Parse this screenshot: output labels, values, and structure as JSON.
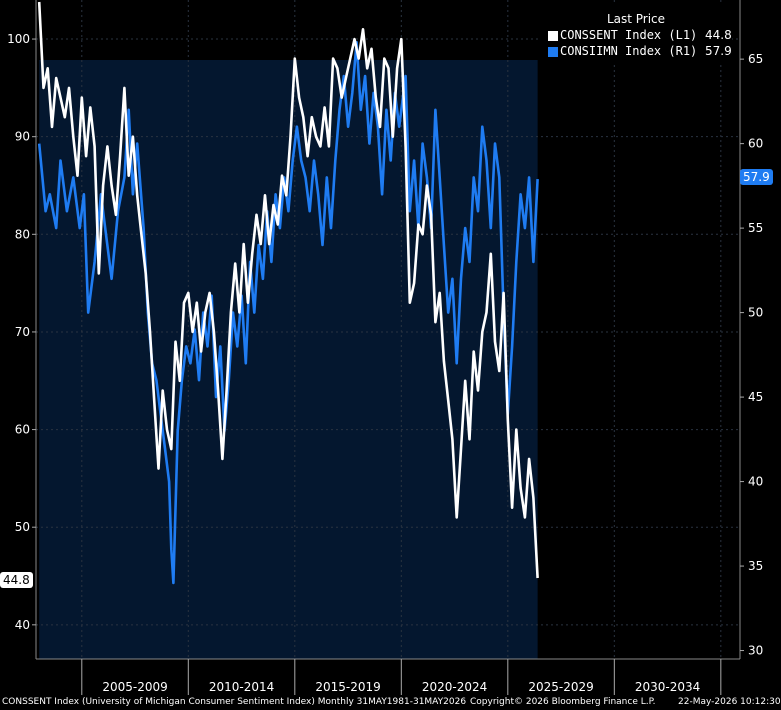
{
  "chart_data": {
    "type": "line",
    "legend": {
      "header": "Last Price",
      "placement": "top-right",
      "entries": [
        {
          "label": "CONSSENT Index  (L1)",
          "value": "44.8",
          "color": "#ffffff"
        },
        {
          "label": "CONSIIMN Index  (R1)",
          "value": "57.9",
          "color": "#1f7cf2"
        }
      ]
    },
    "left_axis": {
      "ylim": [
        36.5,
        104
      ],
      "ticks": [
        "40",
        "50",
        "60",
        "70",
        "80",
        "90",
        "100"
      ]
    },
    "right_axis": {
      "ylim": [
        29.5,
        68.5
      ],
      "ticks": [
        "30",
        "35",
        "40",
        "45",
        "50",
        "55",
        "60",
        "65"
      ]
    },
    "x_axis": {
      "xlim": [
        2002.85,
        2035.9
      ],
      "ticks": [
        "2005-2009",
        "2010-2014",
        "2015-2019",
        "2020-2024",
        "2025-2029",
        "2030-2034"
      ]
    },
    "last_tags": {
      "left": "44.8",
      "right": "57.9"
    },
    "series": [
      {
        "name": "CONSIIMN Index",
        "axis": "right",
        "color": "#1f7cf2",
        "points": [
          [
            2003.0,
            60
          ],
          [
            2003.3,
            56
          ],
          [
            2003.5,
            57
          ],
          [
            2003.8,
            55
          ],
          [
            2004.0,
            59
          ],
          [
            2004.3,
            56
          ],
          [
            2004.6,
            58
          ],
          [
            2004.9,
            55
          ],
          [
            2005.1,
            57
          ],
          [
            2005.3,
            50
          ],
          [
            2005.6,
            53
          ],
          [
            2005.9,
            57
          ],
          [
            2006.1,
            55
          ],
          [
            2006.4,
            52
          ],
          [
            2006.7,
            56
          ],
          [
            2007.0,
            58
          ],
          [
            2007.2,
            62
          ],
          [
            2007.4,
            57
          ],
          [
            2007.6,
            60
          ],
          [
            2007.9,
            55
          ],
          [
            2008.1,
            50
          ],
          [
            2008.3,
            47
          ],
          [
            2008.5,
            46
          ],
          [
            2008.7,
            44
          ],
          [
            2008.9,
            42
          ],
          [
            2009.1,
            40
          ],
          [
            2009.2,
            36
          ],
          [
            2009.3,
            34
          ],
          [
            2009.5,
            43
          ],
          [
            2009.7,
            46
          ],
          [
            2009.9,
            48
          ],
          [
            2010.1,
            47
          ],
          [
            2010.3,
            49
          ],
          [
            2010.5,
            46
          ],
          [
            2010.7,
            50
          ],
          [
            2010.9,
            48
          ],
          [
            2011.1,
            51
          ],
          [
            2011.3,
            45
          ],
          [
            2011.5,
            48
          ],
          [
            2011.7,
            43
          ],
          [
            2011.9,
            46
          ],
          [
            2012.1,
            50
          ],
          [
            2012.3,
            48
          ],
          [
            2012.5,
            51
          ],
          [
            2012.7,
            47
          ],
          [
            2012.9,
            53
          ],
          [
            2013.1,
            50
          ],
          [
            2013.3,
            54
          ],
          [
            2013.5,
            52
          ],
          [
            2013.7,
            56
          ],
          [
            2013.9,
            53
          ],
          [
            2014.1,
            57
          ],
          [
            2014.3,
            55
          ],
          [
            2014.5,
            58
          ],
          [
            2014.7,
            56
          ],
          [
            2014.9,
            59
          ],
          [
            2015.1,
            61
          ],
          [
            2015.3,
            59
          ],
          [
            2015.5,
            58
          ],
          [
            2015.7,
            56
          ],
          [
            2015.9,
            59
          ],
          [
            2016.1,
            57
          ],
          [
            2016.3,
            54
          ],
          [
            2016.5,
            58
          ],
          [
            2016.7,
            55
          ],
          [
            2016.9,
            59
          ],
          [
            2017.1,
            62
          ],
          [
            2017.3,
            64
          ],
          [
            2017.5,
            61
          ],
          [
            2017.7,
            63
          ],
          [
            2017.9,
            66
          ],
          [
            2018.1,
            62
          ],
          [
            2018.3,
            64
          ],
          [
            2018.5,
            60
          ],
          [
            2018.7,
            63
          ],
          [
            2018.9,
            61
          ],
          [
            2019.1,
            57
          ],
          [
            2019.3,
            62
          ],
          [
            2019.5,
            59
          ],
          [
            2019.7,
            63
          ],
          [
            2019.9,
            61
          ],
          [
            2020.2,
            64
          ],
          [
            2020.4,
            56
          ],
          [
            2020.6,
            59
          ],
          [
            2020.8,
            55
          ],
          [
            2021.0,
            60
          ],
          [
            2021.2,
            58
          ],
          [
            2021.4,
            55
          ],
          [
            2021.6,
            62
          ],
          [
            2021.8,
            58
          ],
          [
            2022.0,
            54
          ],
          [
            2022.2,
            50
          ],
          [
            2022.4,
            52
          ],
          [
            2022.6,
            47
          ],
          [
            2022.8,
            52
          ],
          [
            2023.0,
            55
          ],
          [
            2023.2,
            53
          ],
          [
            2023.4,
            58
          ],
          [
            2023.6,
            56
          ],
          [
            2023.8,
            61
          ],
          [
            2024.0,
            59
          ],
          [
            2024.2,
            55
          ],
          [
            2024.4,
            60
          ],
          [
            2024.6,
            58
          ],
          [
            2024.8,
            50
          ],
          [
            2025.0,
            44
          ],
          [
            2025.2,
            48
          ],
          [
            2025.4,
            53
          ],
          [
            2025.6,
            57
          ],
          [
            2025.8,
            55
          ],
          [
            2026.0,
            58
          ],
          [
            2026.2,
            53
          ],
          [
            2026.4,
            57.9
          ]
        ]
      },
      {
        "name": "CONSSENT Index",
        "axis": "left",
        "color": "#ffffff",
        "points": [
          [
            2003.0,
            103.8
          ],
          [
            2003.2,
            95
          ],
          [
            2003.4,
            97
          ],
          [
            2003.6,
            91
          ],
          [
            2003.8,
            96
          ],
          [
            2004.0,
            94
          ],
          [
            2004.2,
            92
          ],
          [
            2004.4,
            95
          ],
          [
            2004.6,
            90
          ],
          [
            2004.8,
            86
          ],
          [
            2005.0,
            94
          ],
          [
            2005.2,
            88
          ],
          [
            2005.4,
            93
          ],
          [
            2005.6,
            89
          ],
          [
            2005.8,
            76
          ],
          [
            2006.0,
            85
          ],
          [
            2006.2,
            89
          ],
          [
            2006.4,
            85
          ],
          [
            2006.6,
            82
          ],
          [
            2006.8,
            88
          ],
          [
            2007.0,
            95
          ],
          [
            2007.2,
            86
          ],
          [
            2007.4,
            90
          ],
          [
            2007.6,
            84
          ],
          [
            2007.8,
            80
          ],
          [
            2008.0,
            76
          ],
          [
            2008.2,
            70
          ],
          [
            2008.4,
            63
          ],
          [
            2008.6,
            56
          ],
          [
            2008.8,
            64
          ],
          [
            2009.0,
            60
          ],
          [
            2009.2,
            58
          ],
          [
            2009.4,
            69
          ],
          [
            2009.6,
            65
          ],
          [
            2009.8,
            73
          ],
          [
            2010.0,
            74
          ],
          [
            2010.2,
            70
          ],
          [
            2010.4,
            73
          ],
          [
            2010.6,
            68
          ],
          [
            2010.8,
            72
          ],
          [
            2011.0,
            74
          ],
          [
            2011.2,
            70
          ],
          [
            2011.4,
            64
          ],
          [
            2011.6,
            57
          ],
          [
            2011.8,
            64
          ],
          [
            2012.0,
            72
          ],
          [
            2012.2,
            77
          ],
          [
            2012.4,
            72
          ],
          [
            2012.6,
            79
          ],
          [
            2012.8,
            73
          ],
          [
            2013.0,
            78
          ],
          [
            2013.2,
            82
          ],
          [
            2013.4,
            79
          ],
          [
            2013.6,
            84
          ],
          [
            2013.8,
            79
          ],
          [
            2014.0,
            83
          ],
          [
            2014.2,
            81
          ],
          [
            2014.4,
            86
          ],
          [
            2014.6,
            84
          ],
          [
            2014.8,
            90
          ],
          [
            2015.0,
            98
          ],
          [
            2015.2,
            94
          ],
          [
            2015.4,
            92
          ],
          [
            2015.6,
            88
          ],
          [
            2015.8,
            92
          ],
          [
            2016.0,
            90
          ],
          [
            2016.2,
            89
          ],
          [
            2016.4,
            93
          ],
          [
            2016.6,
            89
          ],
          [
            2016.8,
            98
          ],
          [
            2017.0,
            97
          ],
          [
            2017.2,
            94
          ],
          [
            2017.4,
            96
          ],
          [
            2017.6,
            98
          ],
          [
            2017.8,
            100
          ],
          [
            2018.0,
            98
          ],
          [
            2018.2,
            101
          ],
          [
            2018.4,
            97
          ],
          [
            2018.6,
            99
          ],
          [
            2018.8,
            94
          ],
          [
            2019.0,
            91
          ],
          [
            2019.2,
            98
          ],
          [
            2019.4,
            97
          ],
          [
            2019.6,
            90
          ],
          [
            2019.8,
            97
          ],
          [
            2020.0,
            100
          ],
          [
            2020.2,
            89
          ],
          [
            2020.4,
            73
          ],
          [
            2020.6,
            75
          ],
          [
            2020.8,
            81
          ],
          [
            2021.0,
            80
          ],
          [
            2021.2,
            85
          ],
          [
            2021.4,
            82
          ],
          [
            2021.6,
            71
          ],
          [
            2021.8,
            74
          ],
          [
            2022.0,
            67
          ],
          [
            2022.2,
            63
          ],
          [
            2022.4,
            59
          ],
          [
            2022.6,
            51
          ],
          [
            2022.8,
            58
          ],
          [
            2023.0,
            65
          ],
          [
            2023.2,
            59
          ],
          [
            2023.4,
            68
          ],
          [
            2023.6,
            64
          ],
          [
            2023.8,
            70
          ],
          [
            2024.0,
            72
          ],
          [
            2024.2,
            78
          ],
          [
            2024.4,
            69
          ],
          [
            2024.6,
            66
          ],
          [
            2024.8,
            74
          ],
          [
            2025.0,
            61
          ],
          [
            2025.2,
            52
          ],
          [
            2025.4,
            60
          ],
          [
            2025.6,
            54
          ],
          [
            2025.8,
            51
          ],
          [
            2026.0,
            57
          ],
          [
            2026.2,
            53
          ],
          [
            2026.4,
            44.8
          ]
        ]
      }
    ]
  },
  "footer": {
    "left": "CONSSENT Index (University of Michigan Consumer Sentiment Index) Monthly 31MAY1981-31MAY2026",
    "center": "Copyright© 2026 Bloomberg Finance L.P.",
    "right": "22-May-2026 10:12:30"
  }
}
